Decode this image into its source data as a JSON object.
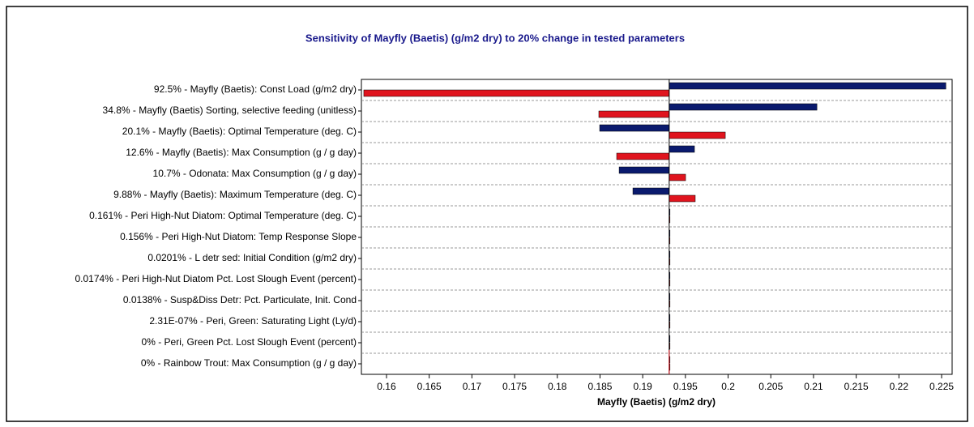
{
  "chart_data": {
    "type": "tornado",
    "title": "Sensitivity of Mayfly (Baetis) (g/m2 dry) to 20% change in tested parameters",
    "x_label": "Mayfly (Baetis) (g/m2 dry)",
    "categories": [
      "92.5% - Mayfly (Baetis): Const Load (g/m2 dry)",
      "34.8% - Mayfly (Baetis) Sorting, selective feeding (unitless)",
      "20.1% - Mayfly (Baetis): Optimal Temperature (deg. C)",
      "12.6% - Mayfly (Baetis): Max Consumption (g / g day)",
      "10.7% - Odonata: Max Consumption (g / g day)",
      "9.88% - Mayfly (Baetis): Maximum Temperature (deg. C)",
      "0.161% - Peri High-Nut Diatom: Optimal Temperature (deg. C)",
      "0.156% - Peri High-Nut Diatom: Temp Response Slope",
      "0.0201% - L detr sed: Initial Condition (g/m2 dry)",
      "0.0174% - Peri High-Nut Diatom Pct. Lost Slough Event (percent)",
      "0.0138% - Susp&Diss Detr: Pct. Particulate, Init. Cond",
      "2.31E-07% - Peri, Green: Saturating Light (Ly/d)",
      "0% - Peri, Green Pct. Lost Slough Event (percent)",
      "0% - Rainbow Trout: Max Consumption (g / g day)"
    ],
    "base": 0.1931,
    "series": [
      {
        "color": "#0a1a6e",
        "values": [
          0.2255,
          0.2104,
          0.18496,
          0.19606,
          0.18724,
          0.18885,
          0.1931,
          0.1931,
          0.1931,
          0.1931,
          0.1931,
          0.1931,
          0.1931,
          0.1931
        ]
      },
      {
        "color": "#e0141e",
        "values": [
          0.15734,
          0.18486,
          0.19967,
          0.18695,
          0.19502,
          0.19615,
          0.1931,
          0.1931,
          0.1931,
          0.1931,
          0.1931,
          0.1931,
          0.1931,
          0.1931
        ]
      }
    ],
    "xlim": [
      0.15706,
      0.22623
    ],
    "xticks": [
      0.16,
      0.165,
      0.17,
      0.175,
      0.18,
      0.185,
      0.19,
      0.195,
      0.2,
      0.205,
      0.21,
      0.215,
      0.22,
      0.225
    ]
  }
}
